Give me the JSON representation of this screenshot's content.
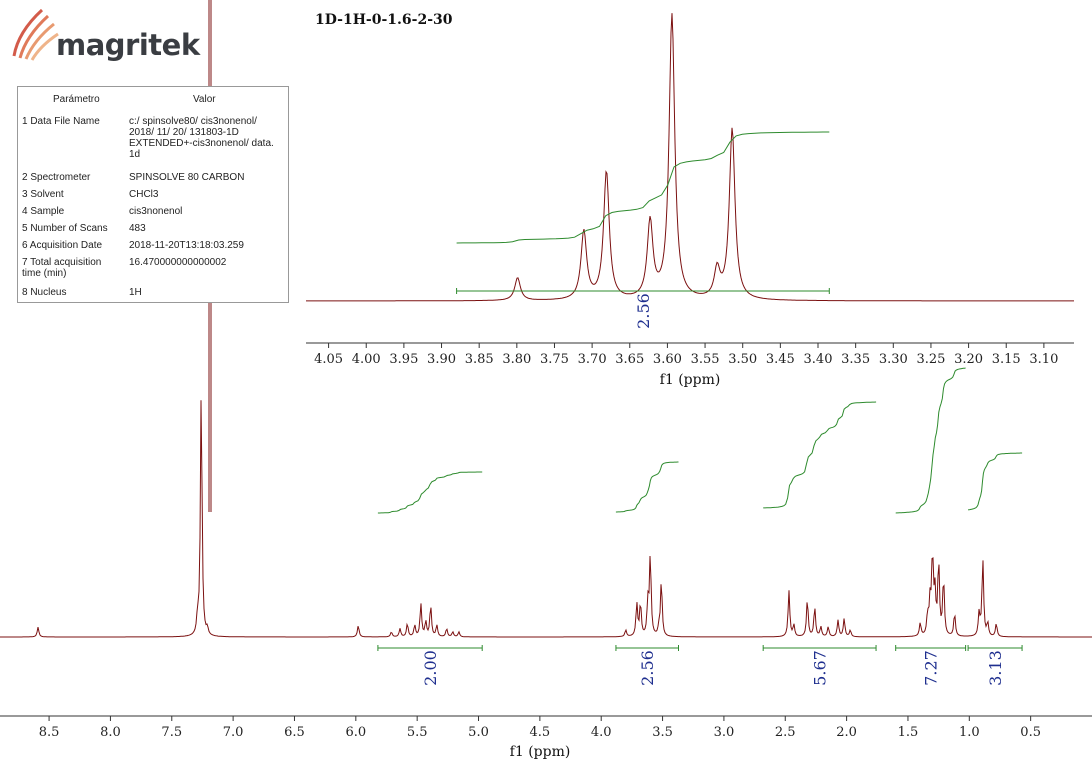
{
  "header": {
    "logo_text": "magritek",
    "spectrum_title": "1D-1H-0-1.6-2-30"
  },
  "parameters": {
    "col_param": "Parámetro",
    "col_value": "Valor",
    "rows": [
      {
        "key": "1 Data File Name",
        "value": "c:/ spinsolve80/ cis3nonenol/ 2018/ 11/ 20/ 131803-1D EXTENDED+-cis3nonenol/ data. 1d"
      },
      {
        "key": "2 Spectrometer",
        "value": "SPINSOLVE 80 CARBON"
      },
      {
        "key": "3 Solvent",
        "value": "CHCl3"
      },
      {
        "key": "4 Sample",
        "value": "cis3nonenol"
      },
      {
        "key": "5 Number of Scans",
        "value": "483"
      },
      {
        "key": "6 Acquisition Date",
        "value": "2018-11-20T13:18:03.259"
      },
      {
        "key": "7 Total acquisition time (min)",
        "value": "16.470000000000002"
      },
      {
        "key": "8 Nucleus",
        "value": "1H"
      }
    ]
  },
  "chart_data": [
    {
      "type": "line",
      "xlabel": "f1 (ppm)",
      "xlim": [
        8.9,
        0.0
      ],
      "x_reversed": true,
      "x_ticks": [
        8.5,
        8.0,
        7.5,
        7.0,
        6.5,
        6.0,
        5.5,
        5.0,
        4.5,
        4.0,
        3.5,
        3.0,
        2.5,
        2.0,
        1.5,
        1.0,
        0.5
      ],
      "series_color": "#7b1010",
      "integral_color": "#2e8b2e",
      "label_color": "#1f2f8f",
      "peaks": [
        {
          "ppm": 8.59,
          "h": 0.06
        },
        {
          "ppm": 7.26,
          "h": 1.5
        },
        {
          "ppm": 7.29,
          "h": 0.1
        },
        {
          "ppm": 7.21,
          "h": 0.04
        },
        {
          "ppm": 5.98,
          "h": 0.07
        },
        {
          "ppm": 5.71,
          "h": 0.03
        },
        {
          "ppm": 5.64,
          "h": 0.05
        },
        {
          "ppm": 5.58,
          "h": 0.08
        },
        {
          "ppm": 5.52,
          "h": 0.07
        },
        {
          "ppm": 5.47,
          "h": 0.2
        },
        {
          "ppm": 5.43,
          "h": 0.09
        },
        {
          "ppm": 5.39,
          "h": 0.19
        },
        {
          "ppm": 5.34,
          "h": 0.07
        },
        {
          "ppm": 5.26,
          "h": 0.05
        },
        {
          "ppm": 5.21,
          "h": 0.03
        },
        {
          "ppm": 5.16,
          "h": 0.03
        },
        {
          "ppm": 3.8,
          "h": 0.04
        },
        {
          "ppm": 3.71,
          "h": 0.2
        },
        {
          "ppm": 3.68,
          "h": 0.2
        },
        {
          "ppm": 3.62,
          "h": 0.2
        },
        {
          "ppm": 3.6,
          "h": 0.49
        },
        {
          "ppm": 3.51,
          "h": 0.34
        },
        {
          "ppm": 3.53,
          "h": 0.05
        },
        {
          "ppm": 2.47,
          "h": 0.28
        },
        {
          "ppm": 2.43,
          "h": 0.07
        },
        {
          "ppm": 2.32,
          "h": 0.23
        },
        {
          "ppm": 2.26,
          "h": 0.18
        },
        {
          "ppm": 2.21,
          "h": 0.06
        },
        {
          "ppm": 2.15,
          "h": 0.06
        },
        {
          "ppm": 2.07,
          "h": 0.1
        },
        {
          "ppm": 2.02,
          "h": 0.11
        },
        {
          "ppm": 1.97,
          "h": 0.04
        },
        {
          "ppm": 1.4,
          "h": 0.08
        },
        {
          "ppm": 1.34,
          "h": 0.12
        },
        {
          "ppm": 1.32,
          "h": 0.2
        },
        {
          "ppm": 1.3,
          "h": 0.49
        },
        {
          "ppm": 1.28,
          "h": 0.25
        },
        {
          "ppm": 1.25,
          "h": 0.45
        },
        {
          "ppm": 1.21,
          "h": 0.35
        },
        {
          "ppm": 1.12,
          "h": 0.14
        },
        {
          "ppm": 0.92,
          "h": 0.14
        },
        {
          "ppm": 0.89,
          "h": 0.47
        },
        {
          "ppm": 0.85,
          "h": 0.08
        },
        {
          "ppm": 0.78,
          "h": 0.08
        }
      ],
      "integrals": [
        {
          "from": 5.82,
          "to": 4.97,
          "value": "2.00"
        },
        {
          "from": 3.88,
          "to": 3.37,
          "value": "2.56"
        },
        {
          "from": 2.68,
          "to": 1.76,
          "value": "5.67"
        },
        {
          "from": 1.6,
          "to": 1.03,
          "value": "7.27"
        },
        {
          "from": 1.01,
          "to": 0.57,
          "value": "3.13"
        }
      ]
    },
    {
      "type": "line",
      "title": "1D-1H-0-1.6-2-30",
      "xlabel": "f1 (ppm)",
      "xlim": [
        4.08,
        3.06
      ],
      "x_reversed": true,
      "x_ticks": [
        4.05,
        4.0,
        3.95,
        3.9,
        3.85,
        3.8,
        3.75,
        3.7,
        3.65,
        3.6,
        3.55,
        3.5,
        3.45,
        3.4,
        3.35,
        3.3,
        3.25,
        3.2,
        3.15,
        3.1
      ],
      "peaks": [
        {
          "ppm": 3.799,
          "h": 0.08
        },
        {
          "ppm": 3.711,
          "h": 0.24
        },
        {
          "ppm": 3.681,
          "h": 0.45
        },
        {
          "ppm": 3.623,
          "h": 0.27
        },
        {
          "ppm": 3.594,
          "h": 1.0
        },
        {
          "ppm": 3.534,
          "h": 0.1
        },
        {
          "ppm": 3.514,
          "h": 0.6
        }
      ],
      "integrals": [
        {
          "from": 3.88,
          "to": 3.385,
          "value": "2.56"
        }
      ]
    }
  ]
}
